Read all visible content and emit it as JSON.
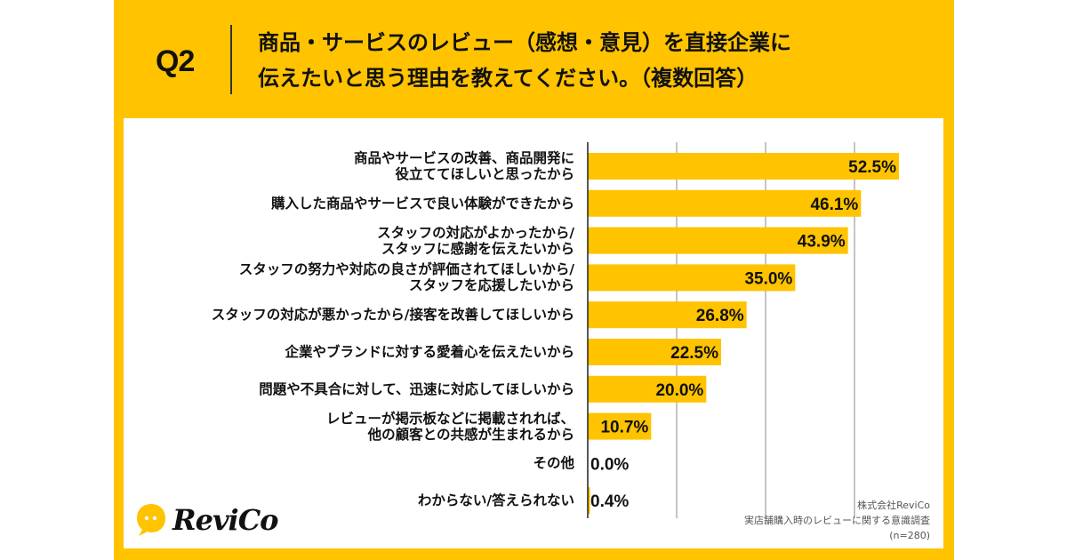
{
  "header": {
    "question_number": "Q2",
    "title_line1": "商品・サービスのレビュー（感想・意見）を直接企業に",
    "title_line2": "伝えたいと思う理由を教えてください。（複数回答）"
  },
  "colors": {
    "brand_yellow": "#FFC300",
    "bar": "#FFC300",
    "text": "#111111",
    "grid": "#888888"
  },
  "chart_data": {
    "type": "bar",
    "orientation": "horizontal",
    "title": "商品・サービスのレビュー（感想・意見）を直接企業に伝えたいと思う理由を教えてください。（複数回答）",
    "xlabel": "",
    "ylabel": "",
    "xlim": [
      0,
      60
    ],
    "grid": true,
    "grid_step": 15,
    "unit": "%",
    "categories": [
      "商品やサービスの改善、商品開発に\n役立ててほしいと思ったから",
      "購入した商品やサービスで良い体験ができたから",
      "スタッフの対応がよかったから/\nスタッフに感謝を伝えたいから",
      "スタッフの努力や対応の良さが評価されてほしいから/\nスタッフを応援したいから",
      "スタッフの対応が悪かったから/接客を改善してほしいから",
      "企業やブランドに対する愛着心を伝えたいから",
      "問題や不具合に対して、迅速に対応してほしいから",
      "レビューが掲示板などに掲載されれば、\n他の顧客との共感が生まれるから",
      "その他",
      "わからない/答えられない"
    ],
    "values": [
      52.5,
      46.1,
      43.9,
      35.0,
      26.8,
      22.5,
      20.0,
      10.7,
      0.0,
      0.4
    ],
    "labels": [
      "52.5%",
      "46.1%",
      "43.9%",
      "35.0%",
      "26.8%",
      "22.5%",
      "20.0%",
      "10.7%",
      "0.0%",
      "0.4%"
    ]
  },
  "logo": {
    "text": "ReviCo",
    "icon": "speech-bubble-icon"
  },
  "source": {
    "company": "株式会社ReviCo",
    "survey": "実店舗購入時のレビューに関する意識調査",
    "sample": "(n=280)"
  }
}
